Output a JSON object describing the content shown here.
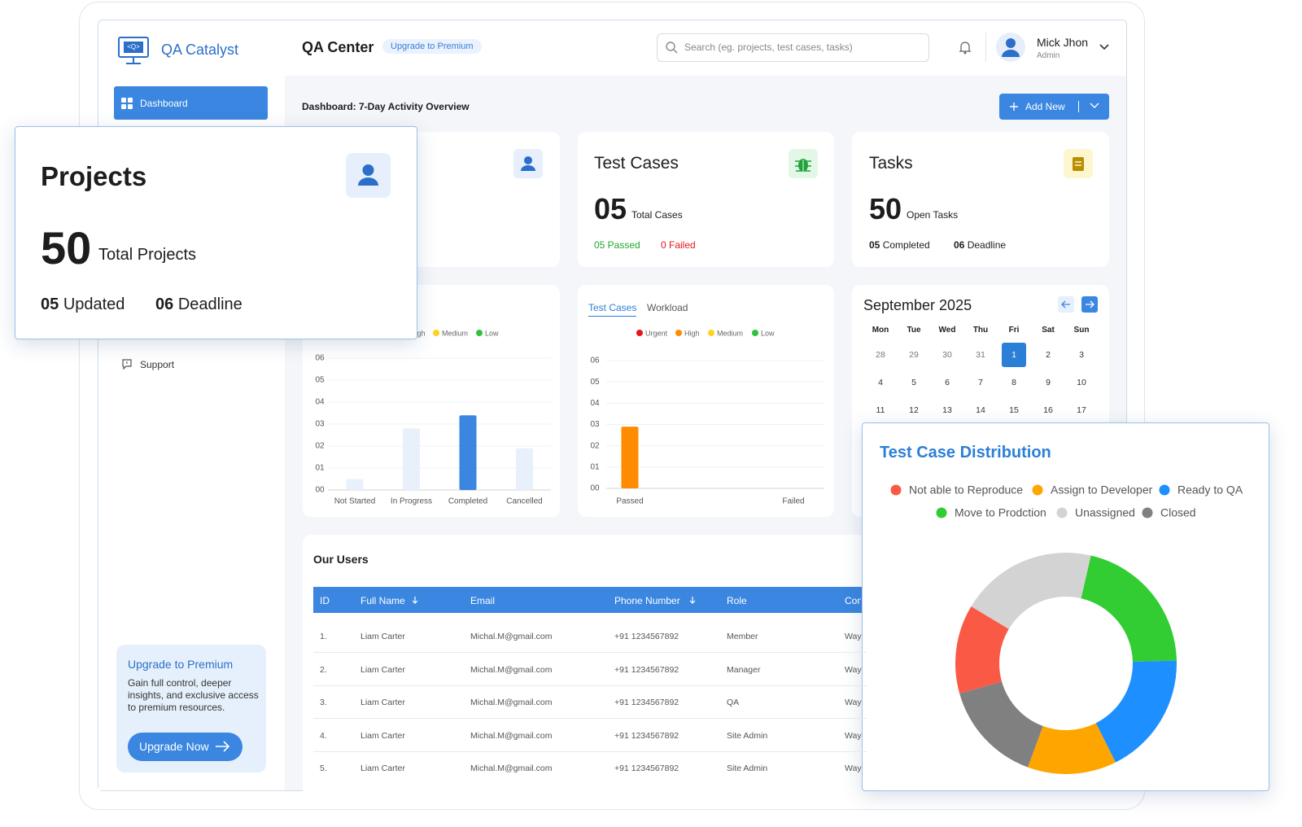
{
  "header": {
    "logo": "QA Catalyst",
    "title": "QA Center",
    "badge": "Upgrade to Premium",
    "search_placeholder": "Search (eg. projects, test cases, tasks)",
    "user_name": "Mick Jhon",
    "user_role": "Admin"
  },
  "sidebar": {
    "items": [
      "Dashboard",
      "Support"
    ],
    "upgrade": {
      "title": "Upgrade to Premium",
      "text": "Gain full control, deeper insights, and exclusive access to premium resources.",
      "button": "Upgrade Now"
    }
  },
  "dashboard": {
    "title": "Dashboard: 7-Day Activity Overview",
    "add_button": "Add New",
    "cards": [
      {
        "title": "Test Cases",
        "count": "05",
        "count_label": "Total Cases",
        "stats": [
          "05 Passed",
          "0 Failed"
        ]
      },
      {
        "title": "Tasks",
        "count": "50",
        "count_label": "Open Tasks",
        "stats": [
          {
            "value": "05",
            "label": "Completed"
          },
          {
            "value": "06",
            "label": "Deadline"
          }
        ]
      }
    ]
  },
  "projects_popup": {
    "title": "Projects",
    "count": "50",
    "count_label": "Total Projects",
    "stats": [
      {
        "value": "05",
        "label": "Updated"
      },
      {
        "value": "06",
        "label": "Deadline"
      }
    ]
  },
  "calendar": {
    "title": "September 2025",
    "weekdays": [
      "Mon",
      "Tue",
      "Wed",
      "Thu",
      "Fri",
      "Sat",
      "Sun"
    ],
    "weeks": [
      [
        28,
        29,
        30,
        31,
        1,
        2,
        3
      ],
      [
        4,
        5,
        6,
        7,
        8,
        9,
        10
      ],
      [
        11,
        12,
        13,
        14,
        15,
        16,
        17
      ]
    ],
    "selected": 1
  },
  "users": {
    "title": "Our Users",
    "columns": [
      "ID",
      "Full Name",
      "Email",
      "Phone Number",
      "Role",
      "Con"
    ],
    "rows": [
      [
        "1.",
        "Liam Carter",
        "Michal.M@gmail.com",
        "+91 1234567892",
        "Member",
        "Way"
      ],
      [
        "2.",
        "Liam Carter",
        "Michal.M@gmail.com",
        "+91 1234567892",
        "Manager",
        "Way"
      ],
      [
        "3.",
        "Liam Carter",
        "Michal.M@gmail.com",
        "+91 1234567892",
        "QA",
        "Way"
      ],
      [
        "4.",
        "Liam Carter",
        "Michal.M@gmail.com",
        "+91 1234567892",
        "Site Admin",
        "Way"
      ],
      [
        "5.",
        "Liam Carter",
        "Michal.M@gmail.com",
        "+91 1234567892",
        "Site Admin",
        "Way"
      ]
    ]
  },
  "chart_data": [
    {
      "type": "bar",
      "legend": [
        {
          "name": "High",
          "color": "#ff8a00"
        },
        {
          "name": "Medium",
          "color": "#ffd21f"
        },
        {
          "name": "Low",
          "color": "#2fc23b"
        }
      ],
      "categories": [
        "Not Started",
        "In Progress",
        "Completed",
        "Cancelled"
      ],
      "values": [
        0.5,
        2.8,
        3.4,
        1.9
      ],
      "colors": [
        "#e8f0fb",
        "#e8f0fb",
        "#3a86e0",
        "#e8f0fb"
      ],
      "ylim": [
        0,
        6
      ],
      "yticks": [
        {
          "value": 0,
          "label": "00"
        },
        {
          "value": 1,
          "label": "01"
        },
        {
          "value": 2,
          "label": "02"
        },
        {
          "value": 3,
          "label": "03"
        },
        {
          "value": 4,
          "label": "04"
        },
        {
          "value": 5,
          "label": "05"
        },
        {
          "value": 6,
          "label": "06"
        }
      ],
      "grid": true
    },
    {
      "type": "bar",
      "tabs": [
        "Test Cases",
        "Workload"
      ],
      "legend": [
        {
          "name": "Urgent",
          "color": "#e8141b"
        },
        {
          "name": "High",
          "color": "#ff8a00"
        },
        {
          "name": "Medium",
          "color": "#ffd21f"
        },
        {
          "name": "Low",
          "color": "#2fc23b"
        }
      ],
      "categories": [
        "Passed",
        "Failed"
      ],
      "values": [
        2.9,
        0
      ],
      "colors": [
        "#ff8c00",
        "#ff8c00"
      ],
      "ylim": [
        0,
        6
      ],
      "yticks": [
        {
          "value": 0,
          "label": "00"
        },
        {
          "value": 1,
          "label": "01"
        },
        {
          "value": 2,
          "label": "02"
        },
        {
          "value": 3,
          "label": "03"
        },
        {
          "value": 4,
          "label": "04"
        },
        {
          "value": 5,
          "label": "05"
        },
        {
          "value": 6,
          "label": "06"
        }
      ],
      "grid": true
    },
    {
      "type": "pie",
      "donut": true,
      "title": "Test Case Distribution",
      "categories": [
        "Not able to Reproduce",
        "Assign to Developer",
        "Ready to QA",
        "Move to Prodction",
        "Unassigned",
        "Closed"
      ],
      "values": [
        13,
        13,
        18,
        21,
        20,
        15
      ],
      "colors": [
        "#fa5a45",
        "#ffa500",
        "#1e8fff",
        "#32cd32",
        "#d3d3d3",
        "#808080"
      ]
    }
  ]
}
